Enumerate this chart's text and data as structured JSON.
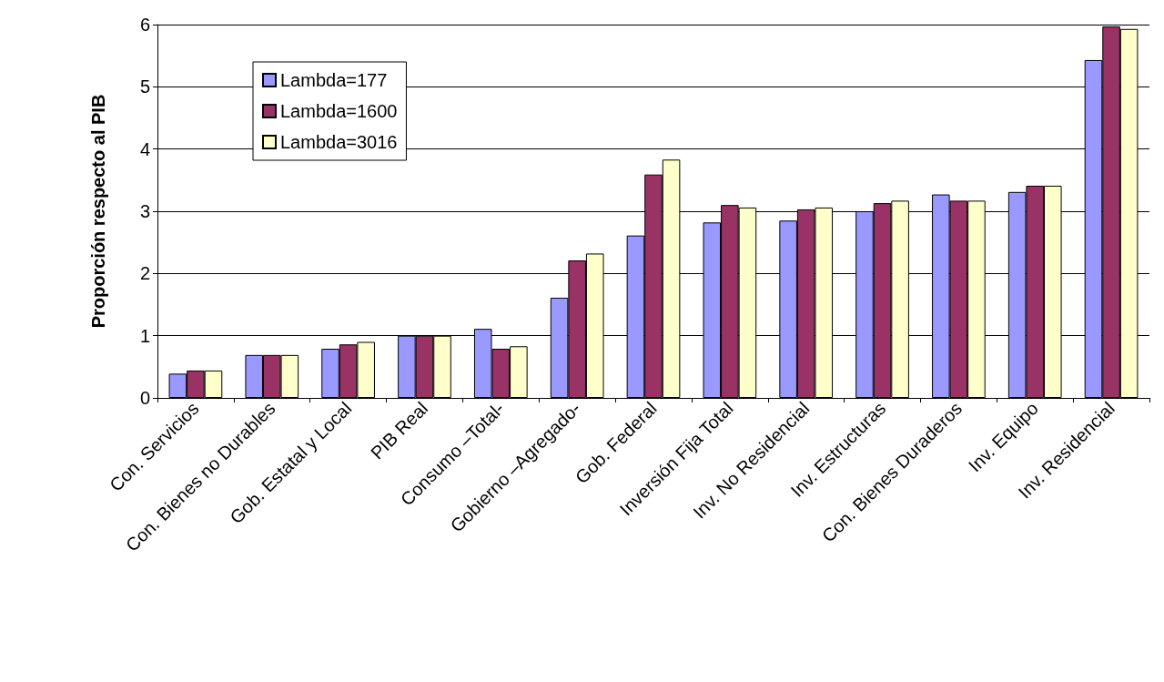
{
  "chart_data": {
    "type": "bar",
    "ylabel": "Proporción respecto al PIB",
    "categories": [
      "Con. Servicios",
      "Con. Bienes no Durables",
      "Gob. Estatal y Local",
      "PIB Real",
      "Consumo –Total-",
      "Gobierno –Agregado-",
      "Gob. Federal",
      "Inversión Fija Total",
      "Inv. No Residencial",
      "Inv. Estructuras",
      "Con. Bienes Duraderos",
      "Inv. Equipo",
      "Inv. Residencial"
    ],
    "series": [
      {
        "name": "Lambda=177",
        "color": "#9999ff",
        "values": [
          0.39,
          0.69,
          0.79,
          1.0,
          1.11,
          1.61,
          2.61,
          2.82,
          2.85,
          3.0,
          3.27,
          3.31,
          5.43
        ]
      },
      {
        "name": "Lambda=1600",
        "color": "#993366",
        "values": [
          0.44,
          0.69,
          0.86,
          1.0,
          0.79,
          2.21,
          3.59,
          3.1,
          3.03,
          3.13,
          3.17,
          3.41,
          5.97
        ]
      },
      {
        "name": "Lambda=3016",
        "color": "#ffffcc",
        "values": [
          0.44,
          0.69,
          0.9,
          1.0,
          0.83,
          2.32,
          3.83,
          3.06,
          3.06,
          3.17,
          3.17,
          3.41,
          5.93
        ]
      }
    ],
    "ylim": [
      0,
      6
    ],
    "yticks": [
      0,
      1,
      2,
      3,
      4,
      5,
      6
    ],
    "grid": "y",
    "legend": "top left"
  }
}
